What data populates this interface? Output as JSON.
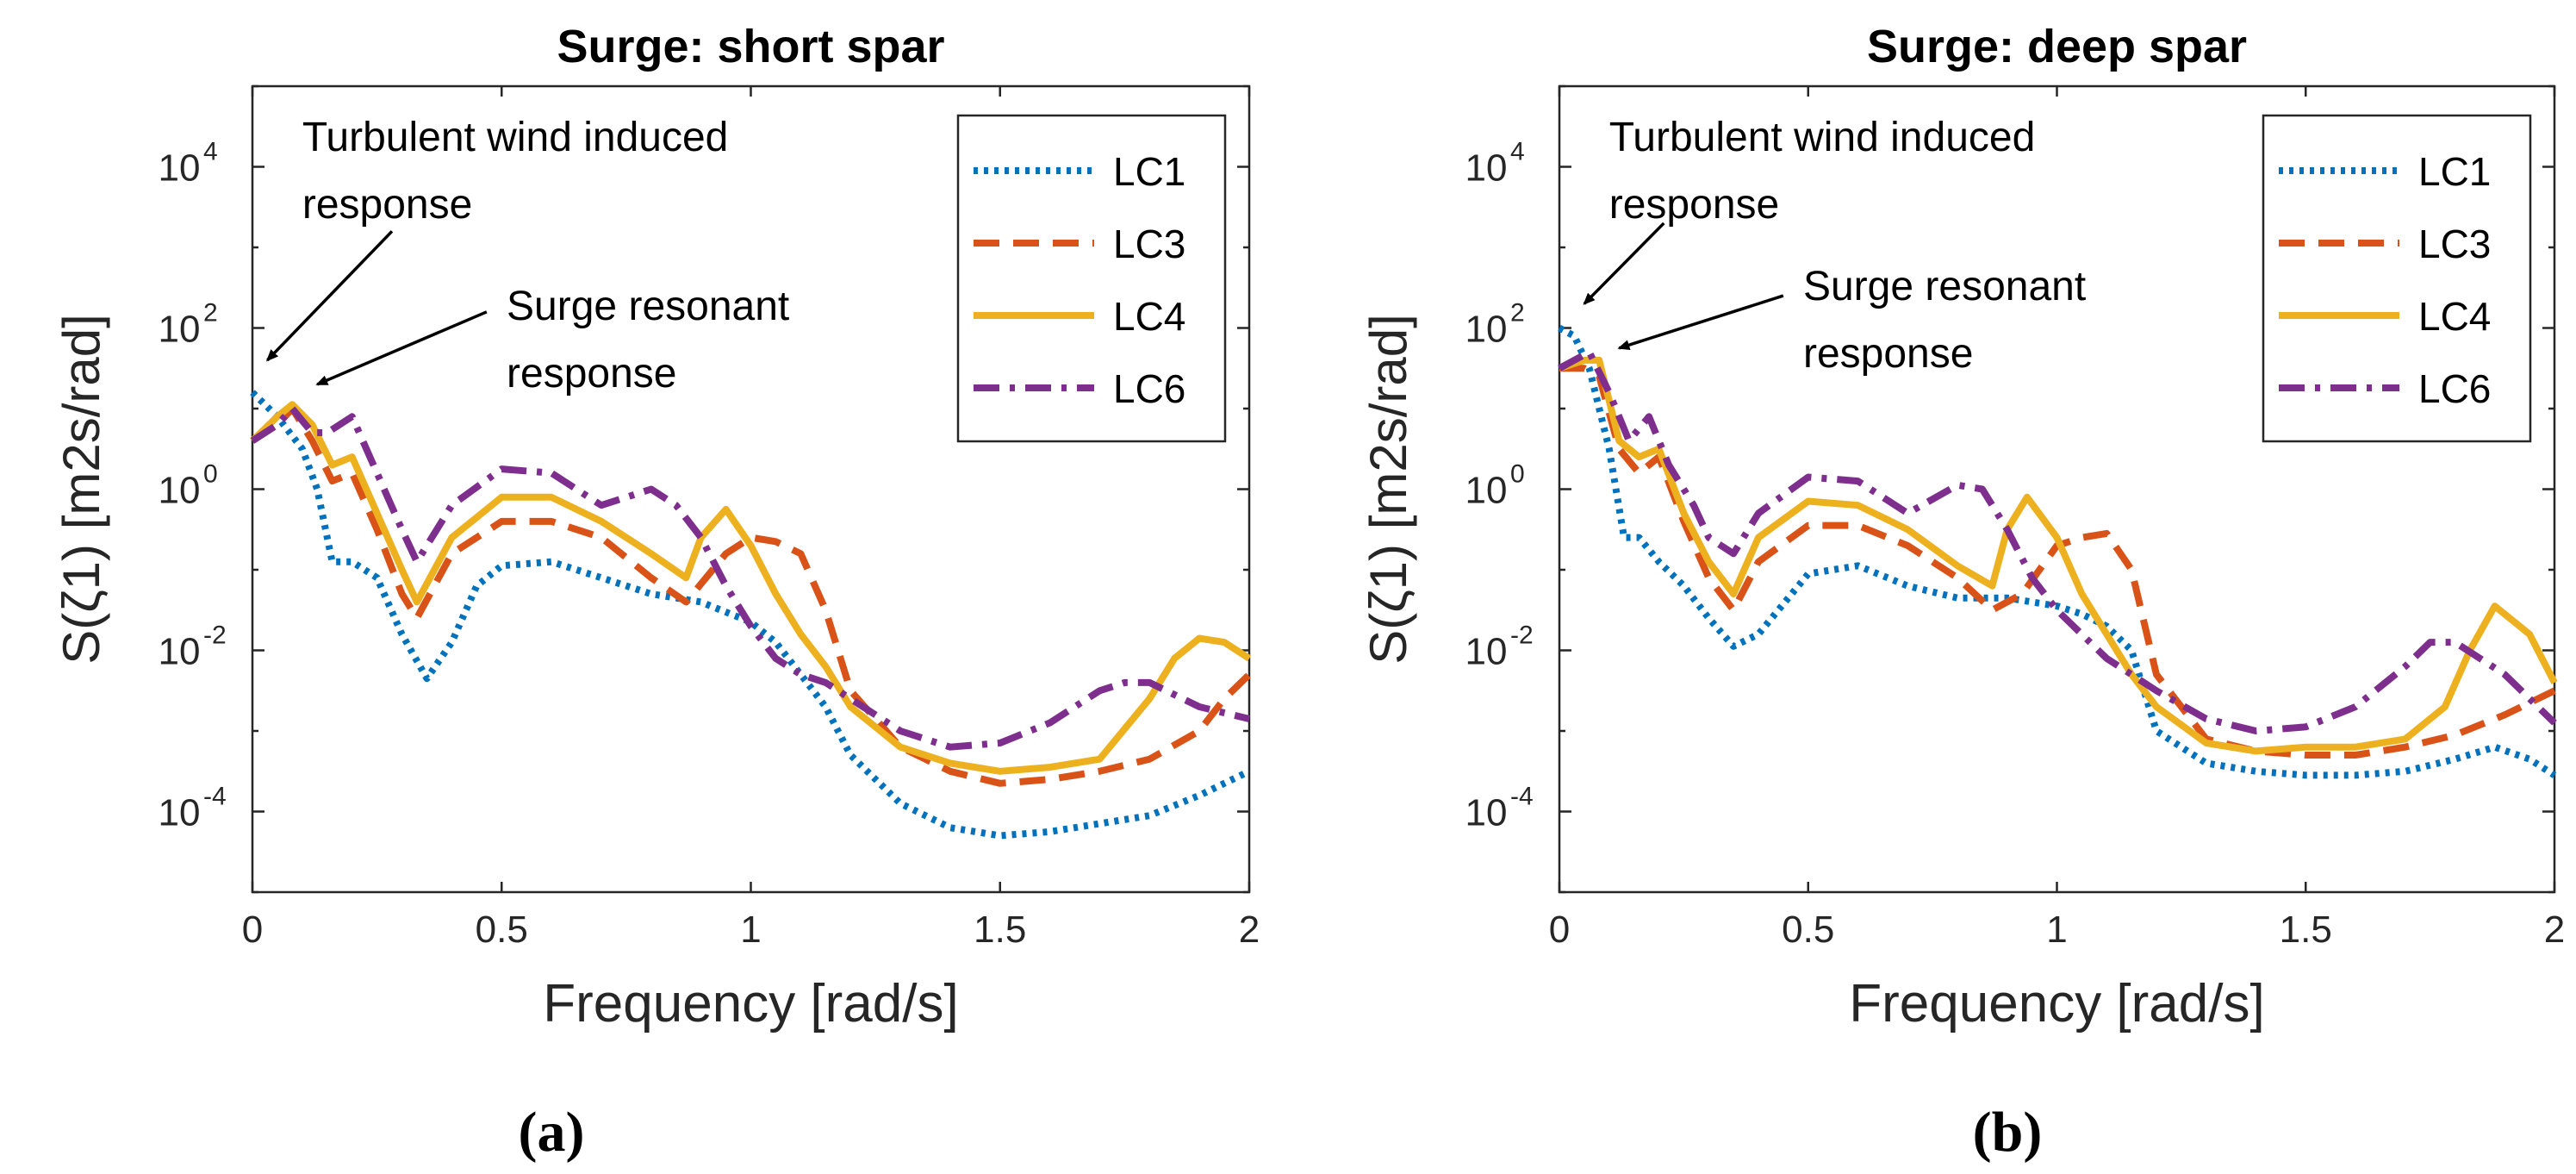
{
  "chart_data": [
    {
      "type": "line",
      "panel_label": "(a)",
      "title": "Surge: short spar",
      "xlabel": "Frequency [rad/s]",
      "ylabel": "S(ζ1) [m2s/rad]",
      "x_ticks": [
        "0",
        "0.5",
        "1",
        "1.5",
        "2"
      ],
      "y_ticks": [
        {
          "value": 4,
          "label": "10",
          "exp": "4"
        },
        {
          "value": 2,
          "label": "10",
          "exp": "2"
        },
        {
          "value": 0,
          "label": "10",
          "exp": "0"
        },
        {
          "value": -2,
          "label": "10",
          "exp": "-2"
        },
        {
          "value": -4,
          "label": "10",
          "exp": "-4"
        }
      ],
      "xlim": [
        0,
        2
      ],
      "ylim_log10": [
        -5,
        5
      ],
      "legend_position": "top-right",
      "annotations": [
        {
          "lines": [
            "Turbulent wind induced",
            "response"
          ],
          "text_x": 0.1,
          "text_y": 4.2,
          "arrow_from": [
            0.28,
            3.2
          ],
          "arrow_to": [
            0.03,
            1.6
          ]
        },
        {
          "lines": [
            "Surge resonant",
            "response"
          ],
          "text_x": 0.51,
          "text_y": 2.1,
          "arrow_from": [
            0.47,
            2.2
          ],
          "arrow_to": [
            0.13,
            1.3
          ]
        }
      ],
      "series": [
        {
          "name": "LC1",
          "color": "#0072BD",
          "style": "dotted",
          "x": [
            0,
            0.05,
            0.1,
            0.13,
            0.16,
            0.2,
            0.25,
            0.3,
            0.35,
            0.4,
            0.45,
            0.5,
            0.6,
            0.7,
            0.8,
            0.9,
            1.0,
            1.05,
            1.1,
            1.15,
            1.2,
            1.3,
            1.4,
            1.5,
            1.6,
            1.7,
            1.8,
            1.9,
            2.0
          ],
          "y": [
            1.2,
            0.9,
            0.5,
            0.0,
            -0.9,
            -0.9,
            -1.1,
            -1.8,
            -2.35,
            -1.9,
            -1.2,
            -0.95,
            -0.9,
            -1.1,
            -1.3,
            -1.4,
            -1.65,
            -1.9,
            -2.3,
            -2.7,
            -3.3,
            -3.9,
            -4.2,
            -4.3,
            -4.25,
            -4.15,
            -4.05,
            -3.8,
            -3.5
          ]
        },
        {
          "name": "LC3",
          "color": "#D95319",
          "style": "dashed",
          "x": [
            0,
            0.05,
            0.08,
            0.12,
            0.16,
            0.2,
            0.25,
            0.3,
            0.33,
            0.4,
            0.5,
            0.6,
            0.7,
            0.8,
            0.87,
            0.95,
            1.0,
            1.05,
            1.1,
            1.15,
            1.2,
            1.3,
            1.4,
            1.5,
            1.6,
            1.7,
            1.8,
            1.9,
            1.95,
            2.0
          ],
          "y": [
            0.6,
            0.8,
            1.0,
            0.6,
            0.1,
            0.2,
            -0.5,
            -1.3,
            -1.6,
            -0.8,
            -0.4,
            -0.4,
            -0.6,
            -1.1,
            -1.4,
            -0.8,
            -0.6,
            -0.65,
            -0.8,
            -1.5,
            -2.5,
            -3.2,
            -3.5,
            -3.65,
            -3.6,
            -3.5,
            -3.35,
            -3.0,
            -2.6,
            -2.3
          ]
        },
        {
          "name": "LC4",
          "color": "#EDB120",
          "style": "solid",
          "x": [
            0,
            0.05,
            0.08,
            0.12,
            0.16,
            0.2,
            0.25,
            0.3,
            0.33,
            0.4,
            0.5,
            0.6,
            0.7,
            0.8,
            0.87,
            0.9,
            0.95,
            1.0,
            1.05,
            1.1,
            1.15,
            1.2,
            1.3,
            1.4,
            1.5,
            1.6,
            1.7,
            1.8,
            1.85,
            1.9,
            1.95,
            2.0
          ],
          "y": [
            0.6,
            0.9,
            1.05,
            0.8,
            0.3,
            0.4,
            -0.3,
            -1.0,
            -1.4,
            -0.6,
            -0.1,
            -0.1,
            -0.4,
            -0.8,
            -1.1,
            -0.6,
            -0.25,
            -0.7,
            -1.3,
            -1.8,
            -2.2,
            -2.7,
            -3.2,
            -3.4,
            -3.5,
            -3.45,
            -3.35,
            -2.6,
            -2.1,
            -1.85,
            -1.9,
            -2.1
          ]
        },
        {
          "name": "LC6",
          "color": "#7E2F8E",
          "style": "dashdot",
          "x": [
            0,
            0.05,
            0.08,
            0.12,
            0.15,
            0.2,
            0.25,
            0.3,
            0.33,
            0.4,
            0.5,
            0.6,
            0.7,
            0.8,
            0.85,
            0.9,
            0.95,
            1.0,
            1.05,
            1.1,
            1.15,
            1.2,
            1.3,
            1.4,
            1.5,
            1.6,
            1.7,
            1.75,
            1.8,
            1.9,
            2.0
          ],
          "y": [
            0.6,
            0.8,
            1.0,
            0.7,
            0.7,
            0.9,
            0.2,
            -0.5,
            -0.9,
            -0.2,
            0.25,
            0.2,
            -0.2,
            0.0,
            -0.2,
            -0.6,
            -1.2,
            -1.7,
            -2.1,
            -2.3,
            -2.4,
            -2.6,
            -3.0,
            -3.2,
            -3.15,
            -2.9,
            -2.5,
            -2.4,
            -2.4,
            -2.7,
            -2.85
          ]
        }
      ]
    },
    {
      "type": "line",
      "panel_label": "(b)",
      "title": "Surge: deep spar",
      "xlabel": "Frequency [rad/s]",
      "ylabel": "S(ζ1) [m2s/rad]",
      "x_ticks": [
        "0",
        "0.5",
        "1",
        "1.5",
        "2"
      ],
      "y_ticks": [
        {
          "value": 4,
          "label": "10",
          "exp": "4"
        },
        {
          "value": 2,
          "label": "10",
          "exp": "2"
        },
        {
          "value": 0,
          "label": "10",
          "exp": "0"
        },
        {
          "value": -2,
          "label": "10",
          "exp": "-2"
        },
        {
          "value": -4,
          "label": "10",
          "exp": "-4"
        }
      ],
      "xlim": [
        0,
        2
      ],
      "ylim_log10": [
        -5,
        5
      ],
      "legend_position": "top-right",
      "annotations": [
        {
          "lines": [
            "Turbulent wind induced",
            "response"
          ],
          "text_x": 0.1,
          "text_y": 4.2,
          "arrow_from": [
            0.21,
            3.3
          ],
          "arrow_to": [
            0.05,
            2.3
          ]
        },
        {
          "lines": [
            "Surge resonant",
            "response"
          ],
          "text_x": 0.49,
          "text_y": 2.35,
          "arrow_from": [
            0.45,
            2.4
          ],
          "arrow_to": [
            0.12,
            1.75
          ]
        }
      ],
      "series": [
        {
          "name": "LC1",
          "color": "#0072BD",
          "style": "dotted",
          "x": [
            0,
            0.03,
            0.06,
            0.1,
            0.13,
            0.16,
            0.2,
            0.25,
            0.3,
            0.35,
            0.4,
            0.5,
            0.6,
            0.7,
            0.8,
            0.9,
            1.0,
            1.05,
            1.1,
            1.15,
            1.2,
            1.3,
            1.4,
            1.5,
            1.6,
            1.7,
            1.8,
            1.88,
            1.95,
            2.0
          ],
          "y": [
            2.0,
            1.9,
            1.5,
            0.5,
            -0.6,
            -0.6,
            -0.9,
            -1.2,
            -1.6,
            -1.95,
            -1.8,
            -1.05,
            -0.95,
            -1.2,
            -1.35,
            -1.35,
            -1.45,
            -1.55,
            -1.7,
            -2.0,
            -3.0,
            -3.4,
            -3.5,
            -3.55,
            -3.55,
            -3.5,
            -3.35,
            -3.2,
            -3.35,
            -3.55
          ]
        },
        {
          "name": "LC3",
          "color": "#D95319",
          "style": "dashed",
          "x": [
            0,
            0.05,
            0.08,
            0.12,
            0.16,
            0.2,
            0.25,
            0.3,
            0.35,
            0.4,
            0.5,
            0.6,
            0.7,
            0.8,
            0.87,
            0.93,
            1.0,
            1.05,
            1.1,
            1.15,
            1.2,
            1.3,
            1.4,
            1.5,
            1.6,
            1.7,
            1.8,
            1.9,
            2.0
          ],
          "y": [
            1.5,
            1.5,
            1.4,
            0.5,
            0.2,
            0.4,
            -0.4,
            -1.1,
            -1.5,
            -0.9,
            -0.45,
            -0.45,
            -0.7,
            -1.1,
            -1.5,
            -1.3,
            -0.7,
            -0.6,
            -0.55,
            -1.0,
            -2.3,
            -3.1,
            -3.25,
            -3.3,
            -3.3,
            -3.2,
            -3.05,
            -2.8,
            -2.5
          ]
        },
        {
          "name": "LC4",
          "color": "#EDB120",
          "style": "solid",
          "x": [
            0,
            0.05,
            0.08,
            0.12,
            0.16,
            0.2,
            0.25,
            0.3,
            0.35,
            0.4,
            0.5,
            0.6,
            0.7,
            0.8,
            0.87,
            0.9,
            0.94,
            1.0,
            1.05,
            1.1,
            1.15,
            1.2,
            1.3,
            1.4,
            1.5,
            1.6,
            1.7,
            1.78,
            1.83,
            1.88,
            1.95,
            2.0
          ],
          "y": [
            1.5,
            1.6,
            1.6,
            0.6,
            0.4,
            0.5,
            -0.3,
            -0.9,
            -1.3,
            -0.6,
            -0.15,
            -0.2,
            -0.5,
            -0.95,
            -1.2,
            -0.5,
            -0.1,
            -0.6,
            -1.3,
            -1.8,
            -2.3,
            -2.7,
            -3.15,
            -3.25,
            -3.2,
            -3.2,
            -3.1,
            -2.7,
            -2.0,
            -1.45,
            -1.8,
            -2.4
          ]
        },
        {
          "name": "LC6",
          "color": "#7E2F8E",
          "style": "dashdot",
          "x": [
            0,
            0.03,
            0.06,
            0.1,
            0.14,
            0.18,
            0.22,
            0.27,
            0.3,
            0.35,
            0.4,
            0.5,
            0.6,
            0.7,
            0.8,
            0.85,
            0.9,
            0.95,
            1.0,
            1.1,
            1.2,
            1.3,
            1.4,
            1.5,
            1.6,
            1.7,
            1.75,
            1.8,
            1.9,
            2.0
          ],
          "y": [
            1.5,
            1.6,
            1.7,
            1.2,
            0.6,
            0.9,
            0.3,
            -0.2,
            -0.6,
            -0.8,
            -0.3,
            0.15,
            0.1,
            -0.3,
            0.05,
            0.0,
            -0.5,
            -1.1,
            -1.5,
            -2.1,
            -2.5,
            -2.85,
            -3.0,
            -2.95,
            -2.7,
            -2.2,
            -1.9,
            -1.9,
            -2.3,
            -2.9
          ]
        }
      ]
    }
  ]
}
